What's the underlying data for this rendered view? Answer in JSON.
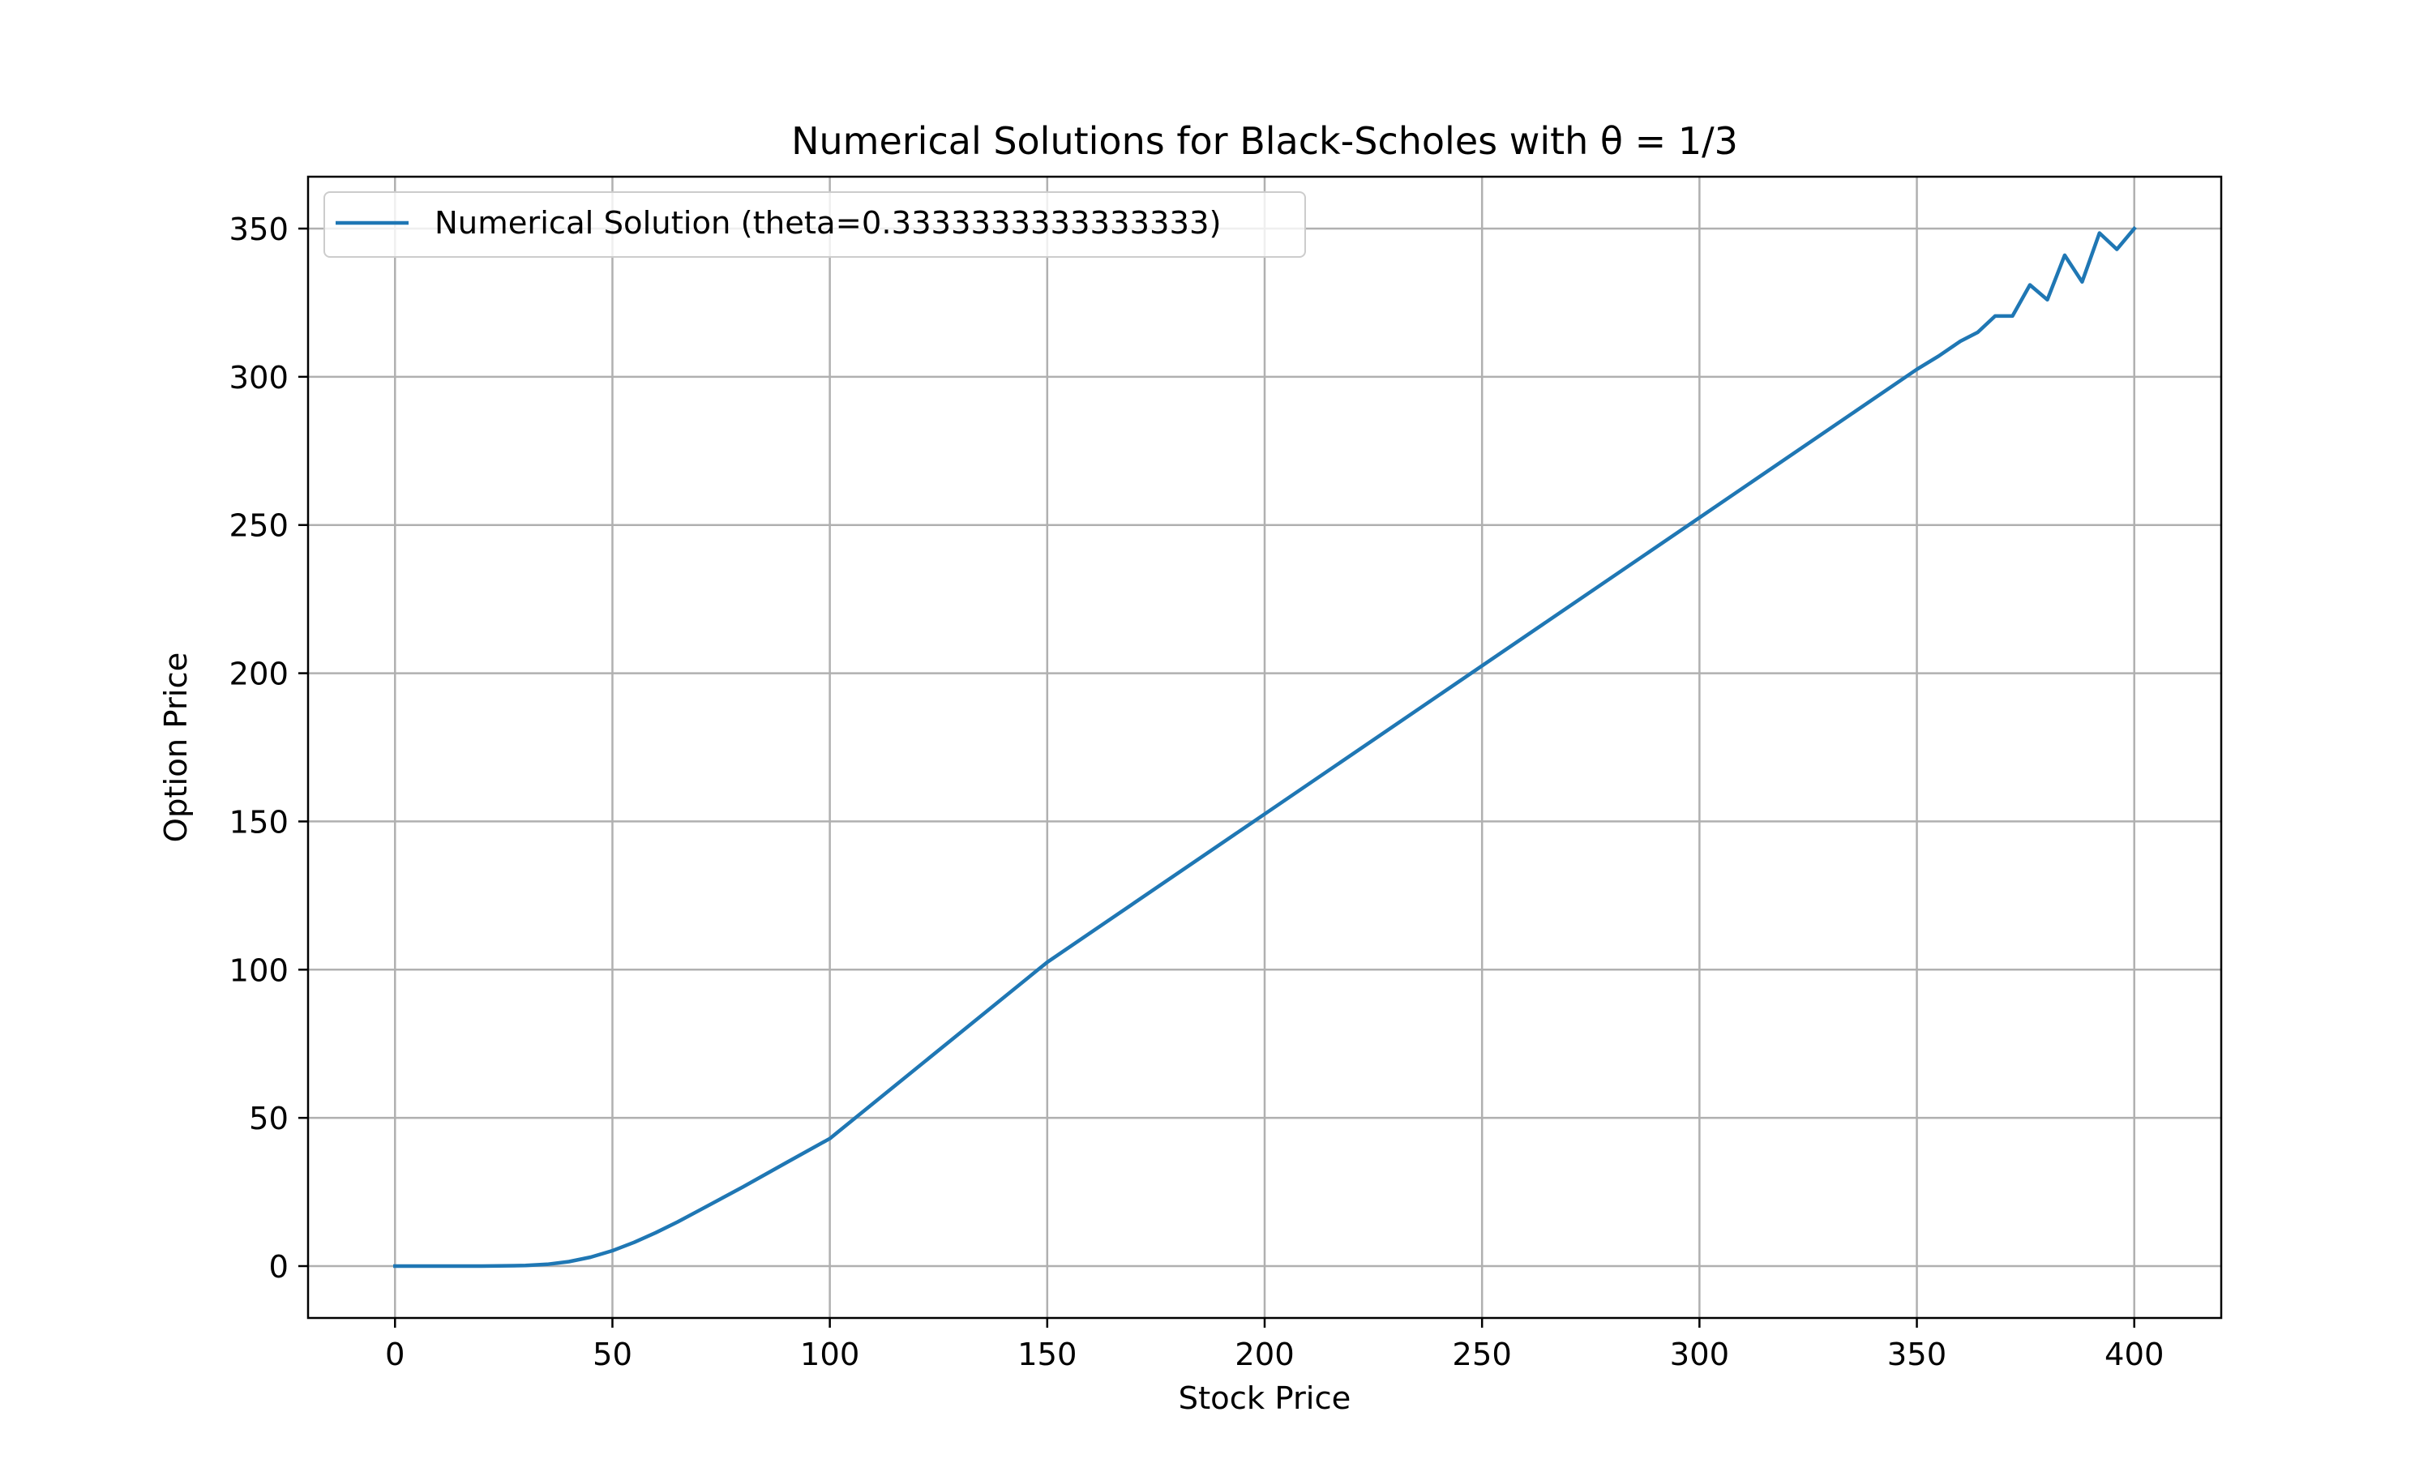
{
  "chart_data": {
    "type": "line",
    "title": "Numerical Solutions for Black-Scholes with   θ = 1/3",
    "xlabel": "Stock Price",
    "ylabel": "Option Price",
    "xlim": [
      -20,
      420
    ],
    "ylim": [
      -17.5,
      367.5
    ],
    "xticks": [
      0,
      50,
      100,
      150,
      200,
      250,
      300,
      350,
      400
    ],
    "yticks": [
      0,
      50,
      100,
      150,
      200,
      250,
      300,
      350
    ],
    "xtick_labels": [
      "0",
      "50",
      "100",
      "150",
      "200",
      "250",
      "300",
      "350",
      "400"
    ],
    "ytick_labels": [
      "0",
      "50",
      "100",
      "150",
      "200",
      "250",
      "300",
      "350"
    ],
    "grid": true,
    "legend_position": "top-left",
    "series": [
      {
        "name": "Numerical Solution (theta=0.3333333333333333)",
        "color": "#1f77b4",
        "x": [
          0,
          10,
          20,
          30,
          35,
          40,
          45,
          50,
          55,
          60,
          65,
          70,
          80,
          90,
          100,
          150,
          200,
          250,
          300,
          350,
          355,
          360,
          364,
          368,
          372,
          376,
          380,
          384,
          388,
          392,
          396,
          400
        ],
        "y": [
          0,
          0,
          0,
          0.2,
          0.6,
          1.5,
          3.0,
          5.2,
          8.0,
          11.3,
          14.9,
          18.8,
          26.7,
          34.9,
          43.0,
          102.5,
          152.5,
          202.5,
          252.5,
          302.5,
          307.0,
          312.0,
          315.0,
          320.5,
          320.5,
          331.0,
          326.0,
          341.0,
          332.0,
          348.5,
          343.0,
          350.0
        ]
      }
    ]
  }
}
